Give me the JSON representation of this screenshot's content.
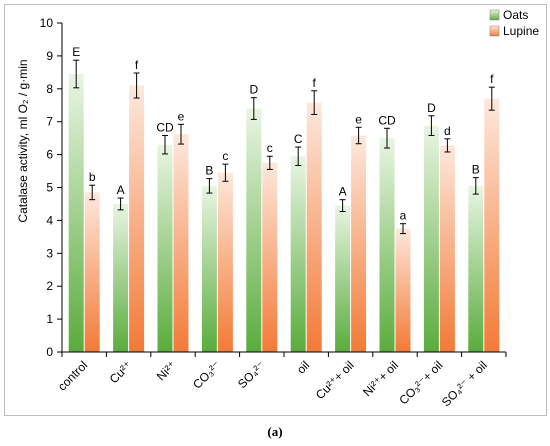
{
  "caption": "(a)",
  "chart_data": {
    "type": "bar",
    "ylabel": "Catalase activity, ml O₂ / g·min",
    "ylim": [
      0,
      10
    ],
    "yticks": [
      0,
      1,
      2,
      3,
      4,
      5,
      6,
      7,
      8,
      9,
      10
    ],
    "categories": [
      "control",
      "Cu²⁺",
      "Ni²⁺",
      "CO₃²⁻",
      "SO₄²⁻",
      "oil",
      "Cu²⁺+ oil",
      "Ni²⁺+ oil",
      "CO₃²⁻+ oil",
      "SO₄²⁻ + oil"
    ],
    "legend_position": "top-right",
    "series": [
      {
        "name": "Oats",
        "color_top": "#e9f5e3",
        "color_bottom": "#5aac3c",
        "values": [
          8.45,
          4.5,
          6.3,
          5.05,
          7.4,
          5.95,
          4.45,
          6.5,
          6.88,
          5.05
        ],
        "errors": [
          0.42,
          0.18,
          0.28,
          0.22,
          0.33,
          0.28,
          0.18,
          0.3,
          0.3,
          0.25
        ],
        "labels": [
          "E",
          "A",
          "CD",
          "B",
          "D",
          "C",
          "A",
          "CD",
          "D",
          "B"
        ]
      },
      {
        "name": "Lupine",
        "color_top": "#fde8dd",
        "color_bottom": "#f37a36",
        "values": [
          4.85,
          8.1,
          6.62,
          5.45,
          5.75,
          7.58,
          6.58,
          3.75,
          6.28,
          7.7
        ],
        "errors": [
          0.22,
          0.38,
          0.3,
          0.26,
          0.2,
          0.36,
          0.25,
          0.15,
          0.2,
          0.35
        ],
        "labels": [
          "b",
          "f",
          "e",
          "c",
          "c",
          "f",
          "e",
          "a",
          "d",
          "f"
        ]
      }
    ]
  }
}
